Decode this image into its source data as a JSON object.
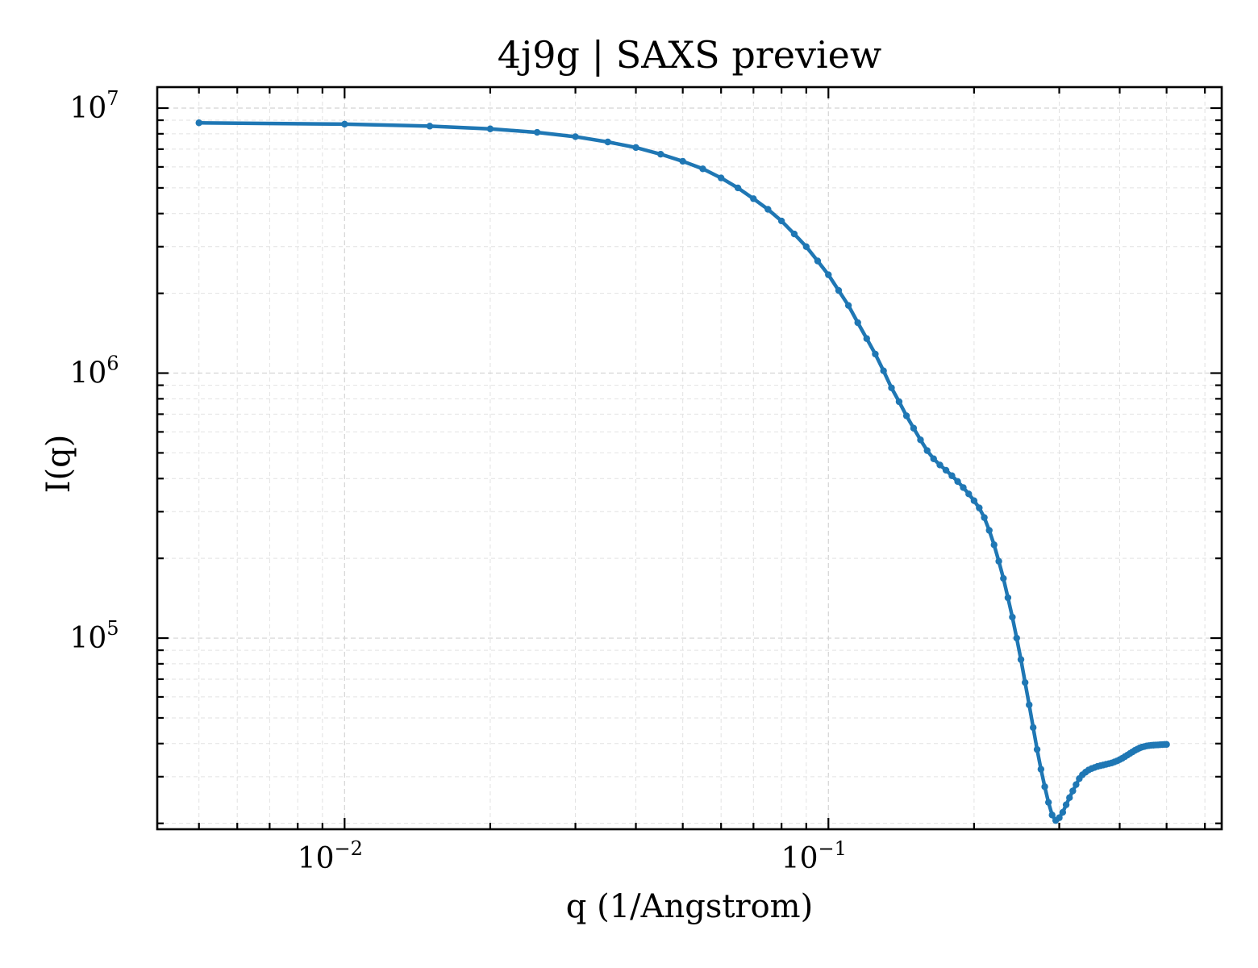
{
  "chart_data": {
    "type": "line",
    "title": "4j9g | SAXS preview",
    "xlabel": "q (1/Angstrom)",
    "ylabel": "I(q)",
    "xscale": "log",
    "yscale": "log",
    "xlim": [
      0.0041,
      0.65
    ],
    "ylim": [
      19000,
      12000000
    ],
    "grid": true,
    "legend": "none",
    "xticks": [
      {
        "value": 0.01,
        "base": "10",
        "exp": "−2"
      },
      {
        "value": 0.1,
        "base": "10",
        "exp": "−1"
      }
    ],
    "yticks": [
      {
        "value": 100000,
        "base": "10",
        "exp": "5"
      },
      {
        "value": 1000000,
        "base": "10",
        "exp": "6"
      },
      {
        "value": 10000000,
        "base": "10",
        "exp": "7"
      }
    ],
    "color": "#1f77b4",
    "series": [
      {
        "x": [
          0.005,
          0.01,
          0.015,
          0.02,
          0.025,
          0.03,
          0.035,
          0.04,
          0.045,
          0.05,
          0.055,
          0.06,
          0.065,
          0.07,
          0.075,
          0.08,
          0.085,
          0.09,
          0.095,
          0.1,
          0.105,
          0.11,
          0.115,
          0.12,
          0.125,
          0.13,
          0.135,
          0.14,
          0.145,
          0.15,
          0.155,
          0.16,
          0.165,
          0.17,
          0.175,
          0.18,
          0.185,
          0.19,
          0.195,
          0.2,
          0.205,
          0.21,
          0.215,
          0.22,
          0.225,
          0.23,
          0.235,
          0.24,
          0.245,
          0.25,
          0.255,
          0.26,
          0.265,
          0.27,
          0.275,
          0.28,
          0.285,
          0.29,
          0.295,
          0.3,
          0.305,
          0.31,
          0.315,
          0.32,
          0.325,
          0.33,
          0.335,
          0.34,
          0.345,
          0.35,
          0.355,
          0.36,
          0.365,
          0.37,
          0.375,
          0.38,
          0.385,
          0.39,
          0.395,
          0.4,
          0.405,
          0.41,
          0.415,
          0.42,
          0.425,
          0.43,
          0.435,
          0.44,
          0.445,
          0.45,
          0.455,
          0.46,
          0.465,
          0.47,
          0.475,
          0.48,
          0.485,
          0.49,
          0.495,
          0.5
        ],
        "y": [
          8800000,
          8700000,
          8550000,
          8350000,
          8100000,
          7800000,
          7450000,
          7100000,
          6700000,
          6300000,
          5900000,
          5450000,
          5000000,
          4550000,
          4150000,
          3750000,
          3350000,
          3000000,
          2650000,
          2350000,
          2050000,
          1800000,
          1550000,
          1350000,
          1180000,
          1020000,
          880000,
          780000,
          690000,
          620000,
          560000,
          510000,
          475000,
          450000,
          430000,
          410000,
          390000,
          370000,
          350000,
          330000,
          310000,
          285000,
          255000,
          225000,
          195000,
          168000,
          142000,
          120000,
          100000,
          83000,
          68000,
          56000,
          46000,
          38000,
          32000,
          27500,
          24000,
          21500,
          20500,
          21000,
          22000,
          23500,
          25000,
          26500,
          28000,
          29500,
          30500,
          31200,
          31800,
          32200,
          32500,
          32800,
          33000,
          33200,
          33400,
          33600,
          33800,
          34100,
          34400,
          34800,
          35200,
          35700,
          36200,
          36700,
          37200,
          37700,
          38100,
          38500,
          38800,
          39000,
          39200,
          39300,
          39400,
          39450,
          39500,
          39550,
          39600,
          39650,
          39700,
          39700
        ]
      }
    ]
  }
}
